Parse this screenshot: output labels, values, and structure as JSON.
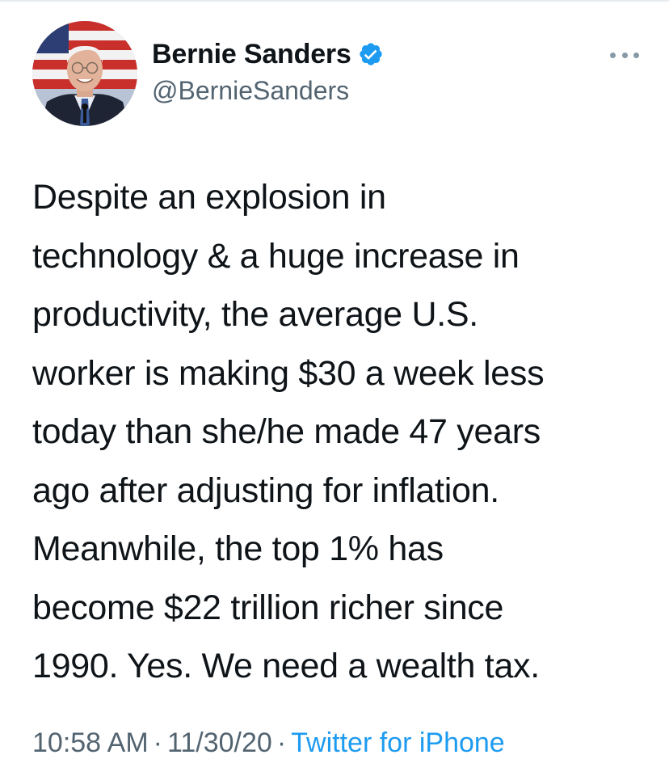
{
  "tweet": {
    "author": {
      "display_name": "Bernie Sanders",
      "handle": "@BernieSanders",
      "verified": true,
      "verified_color": "#1d9bf0"
    },
    "text_lines": [
      "Despite an explosion in",
      "technology & a huge increase in",
      "productivity, the average U.S.",
      "worker is making $30 a week less",
      "today than she/he made 47 years",
      "ago after adjusting for inflation.",
      "Meanwhile, the top 1% has",
      "become $22 trillion richer since",
      "1990. Yes. We need a wealth tax."
    ],
    "time": "10:58 AM",
    "separator": "·",
    "date": "11/30/20",
    "source": "Twitter for iPhone"
  },
  "icons": {
    "verified_badge": "verified-badge-icon",
    "more": "more-options-icon"
  },
  "colors": {
    "text": "#0f1419",
    "secondary": "#536471",
    "link": "#1d9bf0"
  }
}
